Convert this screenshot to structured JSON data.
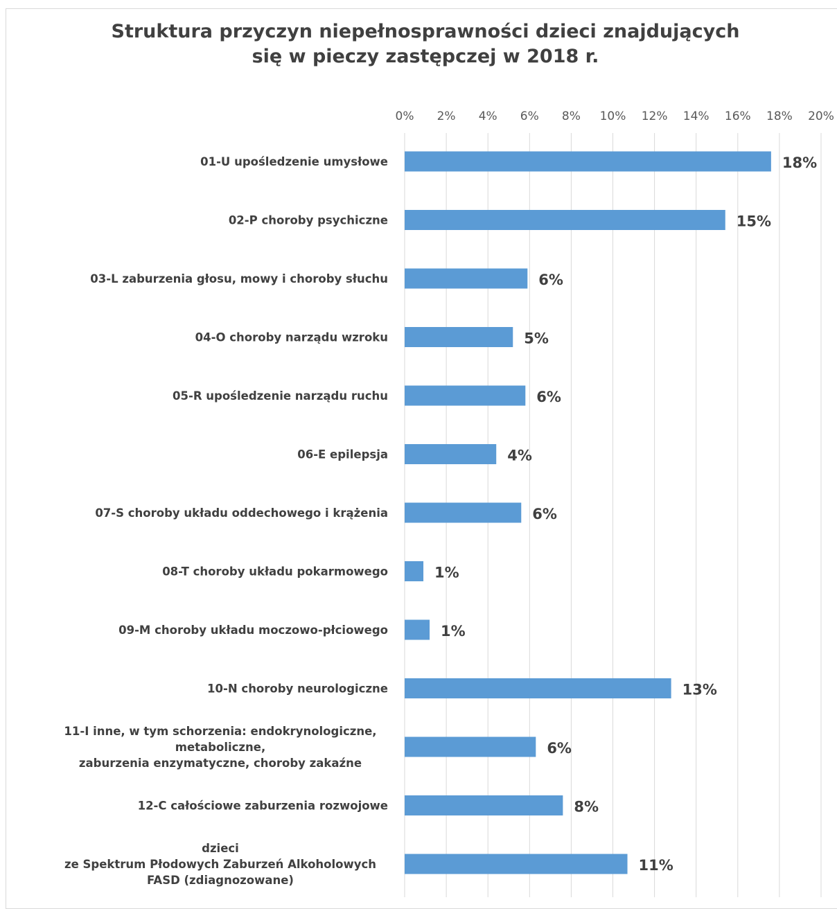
{
  "chart_data": {
    "type": "bar",
    "orientation": "horizontal",
    "title_lines": [
      "Struktura przyczyn niepełnosprawności dzieci znajdujących",
      "się w pieczy zastępczej w 2018 r."
    ],
    "xlim": [
      0,
      20
    ],
    "x_ticks": [
      "0%",
      "2%",
      "4%",
      "6%",
      "8%",
      "10%",
      "12%",
      "14%",
      "16%",
      "18%",
      "20%"
    ],
    "grid": "vertical",
    "bar_color": "#5b9bd5",
    "categories": [
      [
        "01-U upośledzenie umysłowe"
      ],
      [
        "02-P choroby psychiczne"
      ],
      [
        "03-L zaburzenia głosu, mowy i choroby słuchu"
      ],
      [
        "04-O choroby narządu wzroku"
      ],
      [
        "05-R upośledzenie narządu ruchu"
      ],
      [
        "06-E epilepsja"
      ],
      [
        "07-S  choroby układu oddechowego i krążenia"
      ],
      [
        "08-T  choroby układu pokarmowego"
      ],
      [
        "09-M choroby układu moczowo-płciowego"
      ],
      [
        "10-N choroby neurologiczne"
      ],
      [
        "11-I inne, w tym schorzenia: endokrynologiczne,",
        "metaboliczne,",
        "zaburzenia enzymatyczne, choroby zakaźne"
      ],
      [
        "12-C całościowe zaburzenia rozwojowe"
      ],
      [
        "dzieci",
        "ze Spektrum Płodowych Zaburzeń Alkoholowych",
        "FASD (zdiagnozowane)"
      ]
    ],
    "values": [
      17.6,
      15.4,
      5.9,
      5.2,
      5.8,
      4.4,
      5.6,
      0.9,
      1.2,
      12.8,
      6.3,
      7.6,
      10.7
    ],
    "data_labels": [
      "18%",
      "15%",
      "6%",
      "5%",
      "6%",
      "4%",
      "6%",
      "1%",
      "1%",
      "13%",
      "6%",
      "8%",
      "11%"
    ]
  }
}
